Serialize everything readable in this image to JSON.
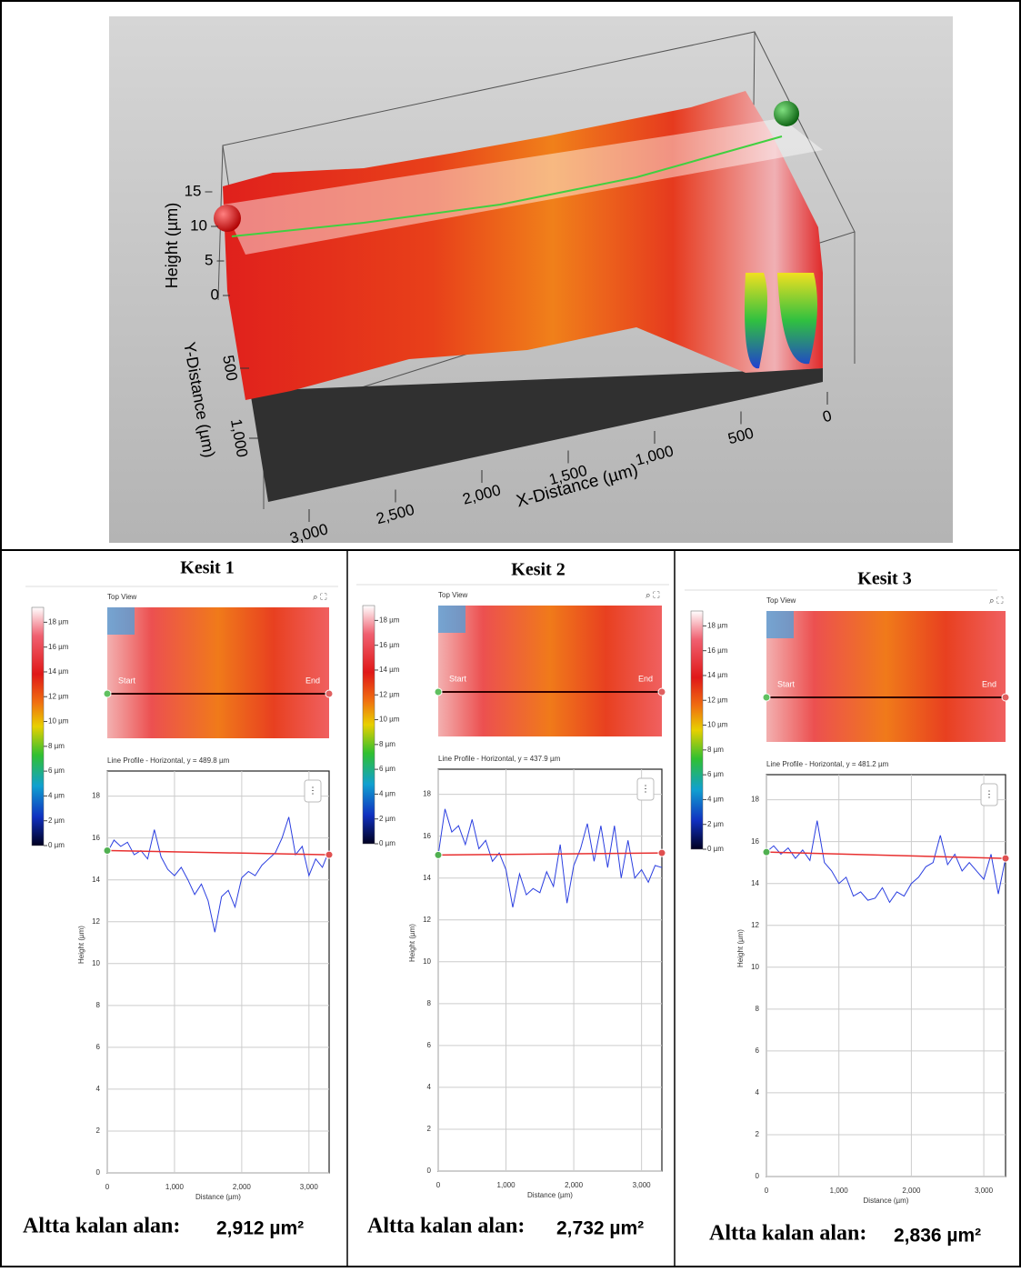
{
  "surface_3d": {
    "z_label": "Height (µm)",
    "zticks": [
      0,
      5,
      10,
      15
    ],
    "y_label": "Y-Distance (µm)",
    "yticks": [
      500,
      {
        "value": 1000,
        "label": "1,000"
      }
    ],
    "x_label": "X-Distance (µm)",
    "xticks": [
      0,
      500,
      {
        "value": 1000,
        "label": "1,000"
      },
      {
        "value": 1500,
        "label": "1,500"
      },
      {
        "value": 2000,
        "label": "2,000"
      },
      {
        "value": 2500,
        "label": "2,500"
      },
      {
        "value": 3000,
        "label": "3,000"
      }
    ]
  },
  "distance_samples": [
    0,
    100,
    200,
    300,
    400,
    500,
    600,
    700,
    800,
    900,
    1000,
    1100,
    1200,
    1300,
    1400,
    1500,
    1600,
    1700,
    1800,
    1900,
    2000,
    2100,
    2200,
    2300,
    2400,
    2500,
    2600,
    2700,
    2800,
    2900,
    3000,
    3100,
    3200,
    3300
  ],
  "sections": [
    {
      "title": "Kesit 1",
      "top_view": "Top View",
      "start": "Start",
      "end": "End",
      "colorbar_ticks": [
        {
          "value": 18,
          "label": "18 µm"
        },
        {
          "value": 16,
          "label": "16 µm"
        },
        {
          "value": 14,
          "label": "14 µm"
        },
        {
          "value": 12,
          "label": "12 µm"
        },
        {
          "value": 10,
          "label": "10 µm"
        },
        {
          "value": 8,
          "label": "8 µm"
        },
        {
          "value": 6,
          "label": "6 µm"
        },
        {
          "value": 4,
          "label": "4 µm"
        },
        {
          "value": 2,
          "label": "2 µm"
        },
        {
          "value": 0,
          "label": "0 µm"
        }
      ],
      "profile_title": "Line Profile - Horizontal, y = 489.8 µm",
      "x_label": "Distance (µm)",
      "y_label": "Height (µm)",
      "xlim": [
        0,
        3300
      ],
      "xticks": [
        0,
        {
          "value": 1000,
          "label": "1,000"
        },
        {
          "value": 2000,
          "label": "2,000"
        },
        {
          "value": 3000,
          "label": "3,000"
        }
      ],
      "ylim": [
        0,
        19.2
      ],
      "yticks": [
        0,
        2,
        4,
        6,
        8,
        10,
        12,
        14,
        16,
        18
      ],
      "heights": [
        15.3,
        15.9,
        15.6,
        15.8,
        15.2,
        15.4,
        15.0,
        16.4,
        15.1,
        14.5,
        14.2,
        14.6,
        14.0,
        13.3,
        13.8,
        13.0,
        11.5,
        13.2,
        13.5,
        12.7,
        14.1,
        14.4,
        14.2,
        14.7,
        15.0,
        15.3,
        16.0,
        17.0,
        15.2,
        15.6,
        14.2,
        15.0,
        14.6,
        15.4
      ],
      "reference_x": [
        0,
        3300
      ],
      "reference_y": [
        15.4,
        15.2
      ],
      "area_label": "Altta kalan alan:",
      "area_value": "2,912 µm²"
    },
    {
      "title": "Kesit 2",
      "top_view": "Top View",
      "start": "Start",
      "end": "End",
      "colorbar_ticks": [
        {
          "value": 18,
          "label": "18 µm"
        },
        {
          "value": 16,
          "label": "16 µm"
        },
        {
          "value": 14,
          "label": "14 µm"
        },
        {
          "value": 12,
          "label": "12 µm"
        },
        {
          "value": 10,
          "label": "10 µm"
        },
        {
          "value": 8,
          "label": "8 µm"
        },
        {
          "value": 6,
          "label": "6 µm"
        },
        {
          "value": 4,
          "label": "4 µm"
        },
        {
          "value": 2,
          "label": "2 µm"
        },
        {
          "value": 0,
          "label": "0 µm"
        }
      ],
      "profile_title": "Line Profile - Horizontal, y = 437.9 µm",
      "x_label": "Distance (µm)",
      "y_label": "Height (µm)",
      "xlim": [
        0,
        3300
      ],
      "xticks": [
        0,
        {
          "value": 1000,
          "label": "1,000"
        },
        {
          "value": 2000,
          "label": "2,000"
        },
        {
          "value": 3000,
          "label": "3,000"
        }
      ],
      "ylim": [
        0,
        19.2
      ],
      "yticks": [
        0,
        2,
        4,
        6,
        8,
        10,
        12,
        14,
        16,
        18
      ],
      "heights": [
        15.1,
        17.3,
        16.2,
        16.5,
        15.6,
        16.8,
        15.4,
        15.8,
        14.8,
        15.2,
        14.4,
        12.6,
        14.2,
        13.2,
        13.5,
        13.3,
        14.3,
        13.6,
        15.6,
        12.8,
        14.6,
        15.4,
        16.6,
        14.8,
        16.5,
        14.5,
        16.5,
        14.0,
        15.8,
        14.0,
        14.4,
        13.8,
        14.6,
        14.5
      ],
      "reference_x": [
        0,
        3300
      ],
      "reference_y": [
        15.1,
        15.2
      ],
      "area_label": "Altta kalan alan:",
      "area_value": "2,732 µm²"
    },
    {
      "title": "Kesit 3",
      "top_view": "Top View",
      "start": "Start",
      "end": "End",
      "colorbar_ticks": [
        {
          "value": 18,
          "label": "18 µm"
        },
        {
          "value": 16,
          "label": "16 µm"
        },
        {
          "value": 14,
          "label": "14 µm"
        },
        {
          "value": 12,
          "label": "12 µm"
        },
        {
          "value": 10,
          "label": "10 µm"
        },
        {
          "value": 8,
          "label": "8 µm"
        },
        {
          "value": 6,
          "label": "6 µm"
        },
        {
          "value": 4,
          "label": "4 µm"
        },
        {
          "value": 2,
          "label": "2 µm"
        },
        {
          "value": 0,
          "label": "0 µm"
        }
      ],
      "profile_title": "Line Profile - Horizontal, y = 481.2 µm",
      "x_label": "Distance (µm)",
      "y_label": "Height (µm)",
      "xlim": [
        0,
        3300
      ],
      "xticks": [
        0,
        {
          "value": 1000,
          "label": "1,000"
        },
        {
          "value": 2000,
          "label": "2,000"
        },
        {
          "value": 3000,
          "label": "3,000"
        }
      ],
      "ylim": [
        0,
        19.2
      ],
      "yticks": [
        0,
        2,
        4,
        6,
        8,
        10,
        12,
        14,
        16,
        18
      ],
      "heights": [
        15.5,
        15.8,
        15.4,
        15.7,
        15.2,
        15.6,
        15.1,
        17.0,
        15.0,
        14.6,
        14.0,
        14.3,
        13.4,
        13.6,
        13.2,
        13.3,
        13.8,
        13.1,
        13.6,
        13.4,
        14.0,
        14.3,
        14.8,
        15.0,
        16.3,
        14.9,
        15.4,
        14.6,
        15.0,
        14.6,
        14.2,
        15.4,
        13.5,
        15.2
      ],
      "reference_x": [
        0,
        3300
      ],
      "reference_y": [
        15.5,
        15.2
      ],
      "area_label": "Altta kalan alan:",
      "area_value": "2,836 µm²"
    }
  ]
}
